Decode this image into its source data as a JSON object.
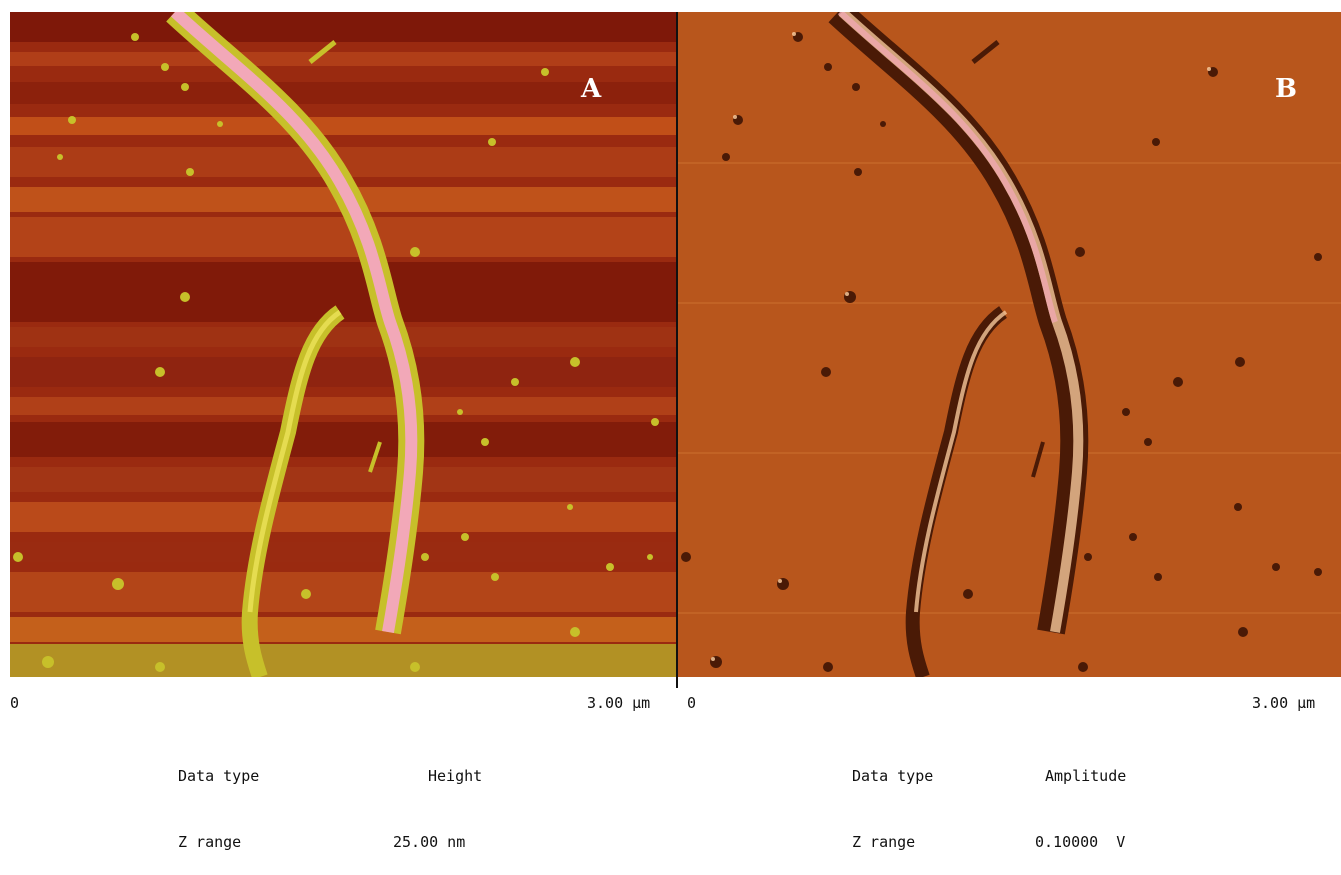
{
  "panel_a": {
    "letter": "A",
    "scale_start": "0",
    "scale_end": "3.00 µm",
    "data_type_label": "Data type",
    "data_type_value": "Height",
    "z_range_label": "Z range",
    "z_range_value": "25.00 nm",
    "colors": {
      "base": "#9a2a10",
      "stripe_light": "#c8561a",
      "stripe_dark": "#7a1608",
      "fiber_edge": "#c7c02a",
      "fiber_core": "#f2a8b8"
    }
  },
  "panel_b": {
    "letter": "B",
    "scale_start": "0",
    "scale_end": "3.00 µm",
    "data_type_label": "Data type",
    "data_type_value": "Amplitude",
    "z_range_label": "Z range",
    "z_range_value": "0.10000  V",
    "colors": {
      "base": "#b8561c",
      "shadow": "#4a1a06",
      "highlight": "#f5c79a",
      "fiber_core": "#f0a8b0"
    }
  }
}
